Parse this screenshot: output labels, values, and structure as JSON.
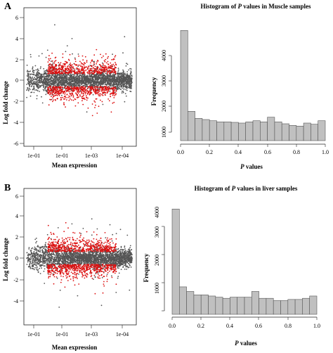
{
  "panels": [
    {
      "letter": "A",
      "ma_plot": {
        "xlabel": "Mean expression",
        "ylabel": "Log fold change",
        "xticks": [
          "1e-01",
          "1e-01",
          "1e-03",
          "1e-04"
        ],
        "yticks": [
          "6",
          "4",
          "2",
          "0",
          "-2",
          "-4",
          "-6"
        ]
      },
      "histogram": {
        "title_pre": "Histogram of ",
        "title_var": "P",
        "title_post": " values in Muscle samples",
        "xlabel_var": "P",
        "xlabel_post": " values",
        "ylabel": "Frequency",
        "xticks": [
          "0.0",
          "0.2",
          "0.4",
          "0.6",
          "0.8",
          "1.0"
        ],
        "yticks": [
          "1000",
          "2000",
          "3000",
          "4000"
        ]
      }
    },
    {
      "letter": "B",
      "ma_plot": {
        "xlabel": "Mean expression",
        "ylabel": "Log fold change",
        "xticks": [
          "1e-01",
          "1e-01",
          "1e-03",
          "1e-04"
        ],
        "yticks": [
          "6",
          "4",
          "2",
          "0",
          "-2",
          "-4"
        ]
      },
      "histogram": {
        "title_pre": "Histogram  of ",
        "title_var": "P",
        "title_post": " values in liver samples",
        "xlabel_var": "P",
        "xlabel_post": " values",
        "ylabel": "Frequency",
        "xticks": [
          "0.0",
          "0.2",
          "0.4",
          "0.6",
          "0.8",
          "1.0"
        ],
        "yticks": [
          "1000",
          "2000",
          "3000",
          "4000"
        ]
      }
    }
  ],
  "colors": {
    "bar_fill": "#c0c0c0",
    "bar_stroke": "#555555",
    "points_ns": "#555555",
    "points_sig": "#dd1111"
  },
  "chart_data": [
    {
      "type": "scatter",
      "xlabel": "Mean expression",
      "ylabel": "Log fold change",
      "ylim": [
        -6,
        6
      ],
      "series": [
        {
          "name": "",
          "color": "#555555",
          "points": [
            [
              1,
              0.0
            ],
            [
              1.3,
              0.2
            ],
            [
              1.6,
              -0.3
            ],
            [
              1.9,
              0.4
            ],
            [
              2.2,
              -0.5
            ],
            [
              2.5,
              0.3
            ]
          ]
        },
        {
          "name": "",
          "color": "#dd1111",
          "points": [
            [
              1.2,
              1.0
            ],
            [
              1.5,
              -1.1
            ],
            [
              1.8,
              1.3
            ],
            [
              2.1,
              -1.4
            ],
            [
              2.4,
              1.1
            ]
          ]
        }
      ]
    },
    {
      "type": "bar",
      "title": "Histogram of P values in Muscle samples",
      "xlabel": "P values",
      "ylabel": "Frequency",
      "bin_edges": [
        0.0,
        0.05,
        0.1,
        0.15,
        0.2,
        0.25,
        0.3,
        0.35,
        0.4,
        0.45,
        0.5,
        0.55,
        0.6,
        0.65,
        0.7,
        0.75,
        0.8,
        0.85,
        0.9,
        0.95,
        1.0
      ],
      "values": [
        4700,
        1250,
        950,
        900,
        850,
        800,
        800,
        780,
        750,
        800,
        850,
        800,
        1000,
        800,
        720,
        650,
        620,
        750,
        700,
        850
      ],
      "ylim": [
        0,
        4700
      ]
    },
    {
      "type": "scatter",
      "xlabel": "Mean expression",
      "ylabel": "Log fold change",
      "ylim": [
        -4.5,
        6
      ],
      "series": [
        {
          "name": "",
          "color": "#555555",
          "points": [
            [
              1,
              0.0
            ],
            [
              1.3,
              0.2
            ],
            [
              1.6,
              -0.3
            ],
            [
              1.9,
              0.4
            ],
            [
              2.2,
              -0.5
            ],
            [
              2.5,
              0.3
            ]
          ]
        },
        {
          "name": "",
          "color": "#dd1111",
          "points": [
            [
              1.2,
              1.0
            ],
            [
              1.5,
              -1.1
            ],
            [
              1.8,
              1.3
            ],
            [
              2.1,
              -1.4
            ],
            [
              2.4,
              1.1
            ]
          ]
        }
      ]
    },
    {
      "type": "bar",
      "title": "Histogram of P values in liver samples",
      "xlabel": "P values",
      "ylabel": "Frequency",
      "bin_edges": [
        0.0,
        0.05,
        0.1,
        0.15,
        0.2,
        0.25,
        0.3,
        0.35,
        0.4,
        0.45,
        0.5,
        0.55,
        0.6,
        0.65,
        0.7,
        0.75,
        0.8,
        0.85,
        0.9,
        0.95,
        1.0
      ],
      "values": [
        4600,
        1200,
        1000,
        850,
        850,
        800,
        750,
        700,
        750,
        750,
        750,
        1000,
        700,
        700,
        600,
        600,
        650,
        650,
        700,
        800
      ],
      "ylim": [
        0,
        4600
      ]
    }
  ]
}
